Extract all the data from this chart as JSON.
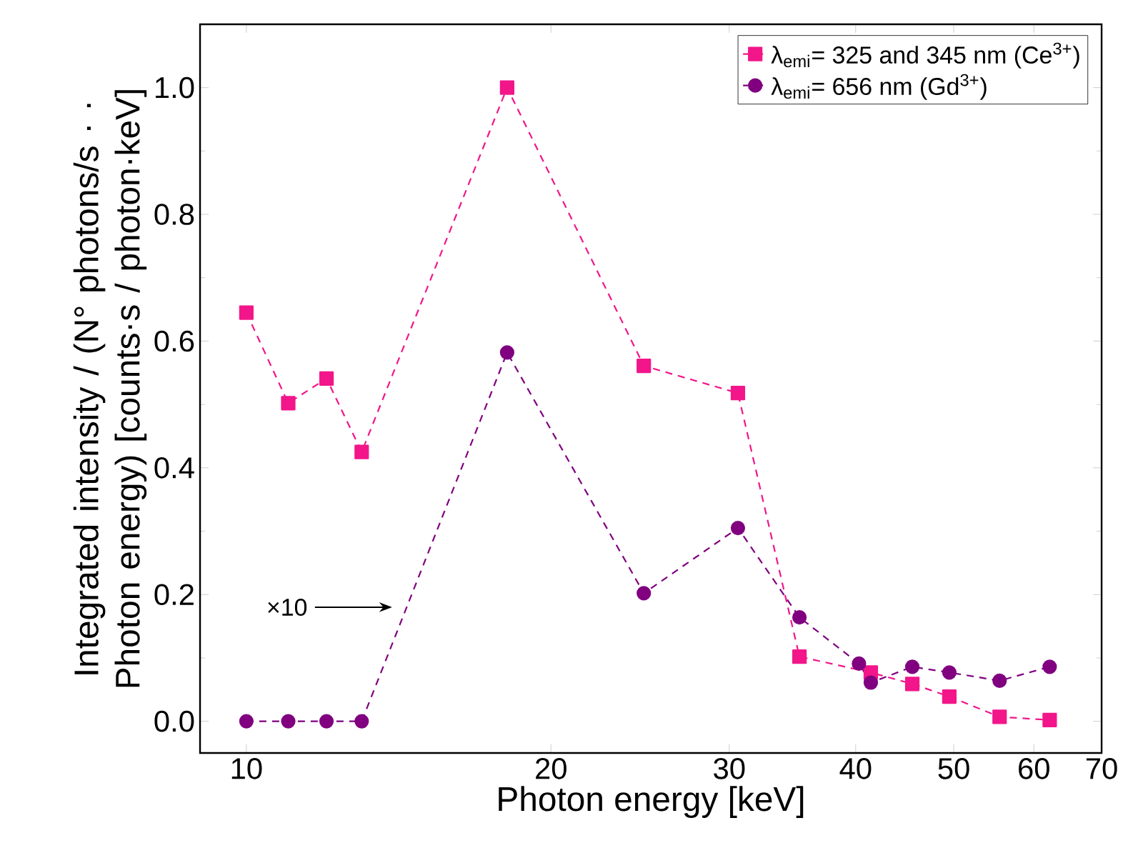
{
  "chart_data": {
    "type": "line",
    "xlabel": "Photon energy [keV]",
    "ylabel": "Integrated intensity / (N° photons/s · · Photon energy) [counts·s / photon·keV]",
    "log": "x",
    "xlim": [
      9,
      70
    ],
    "xticks": [
      10,
      20,
      30,
      40,
      50,
      60,
      70
    ],
    "ylim": [
      -0.05,
      1.1
    ],
    "yticks": [
      {
        "value": 0,
        "label": "0.0"
      },
      {
        "value": 0.2,
        "label": "0.2"
      },
      {
        "value": 0.4,
        "label": "0.4"
      },
      {
        "value": 0.6,
        "label": "0.6"
      },
      {
        "value": 0.8,
        "label": "0.8"
      },
      {
        "value": 1,
        "label": "1.0"
      }
    ],
    "grid": false,
    "legend": "top right",
    "line_style": "dashed",
    "series": [
      {
        "name": "λ$_{emi}$= 325 and 345 nm (Ce$^{3+}$)",
        "color": "#f2168a",
        "marker": "square",
        "x": [
          10,
          11,
          12,
          13,
          18.1,
          24.7,
          30.6,
          35.2,
          41.4,
          45.5,
          49.5,
          55.5,
          62.2
        ],
        "values": [
          0.645,
          0.502,
          0.541,
          0.425,
          1.0,
          0.561,
          0.518,
          0.102,
          0.077,
          0.059,
          0.039,
          0.007,
          0.002
        ]
      },
      {
        "name": "λ$_{emi}$= 656 nm (Gd$^{3+}$)",
        "color": "#800080",
        "marker": "circle",
        "x": [
          10,
          11,
          12,
          13,
          18.1,
          24.7,
          30.6,
          35.2,
          40.3,
          41.4,
          45.5,
          49.5,
          55.5,
          62.2
        ],
        "values": [
          0,
          0,
          0,
          0,
          0.582,
          0.202,
          0.305,
          0.164,
          0.091,
          0.061,
          0.086,
          0.077,
          0.064,
          0.086
        ]
      }
    ],
    "annotations": [
      "×10"
    ]
  }
}
